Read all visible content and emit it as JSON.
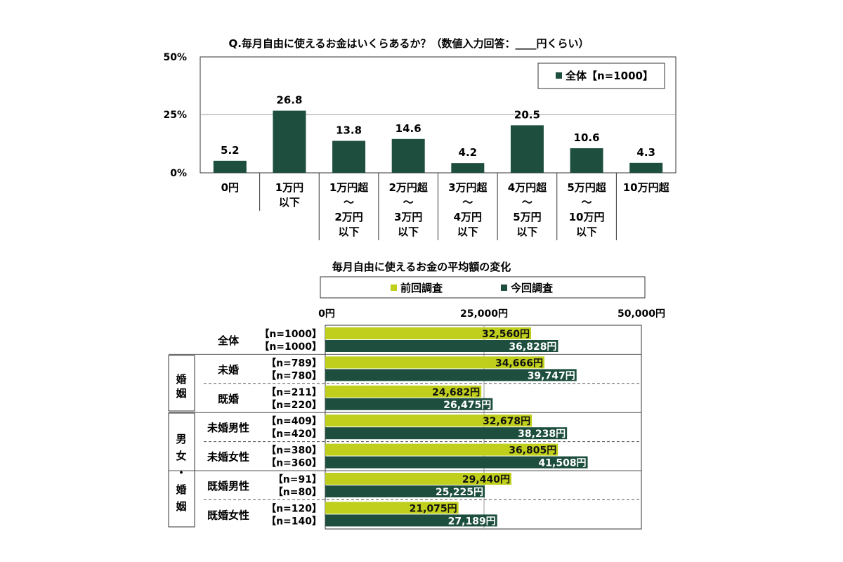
{
  "colors": {
    "dark_green": "#1e4f3e",
    "lime": "#bfcf1c",
    "grid": "#999999",
    "frame": "#333333",
    "white": "#ffffff"
  },
  "chart_data": [
    {
      "type": "bar",
      "title": "Q.毎月自由に使えるお金はいくらあるか？（数値入力回答：____円くらい）",
      "ylim": [
        0,
        50
      ],
      "y_ticks": [
        "50%",
        "25%",
        "0%"
      ],
      "grid": true,
      "legend_position": "top-right",
      "legend": "全体【n=1000】",
      "categories": [
        [
          "0円"
        ],
        [
          "1万円",
          "以下"
        ],
        [
          "1万円超",
          "～",
          "2万円",
          "以下"
        ],
        [
          "2万円超",
          "～",
          "3万円",
          "以下"
        ],
        [
          "3万円超",
          "～",
          "4万円",
          "以下"
        ],
        [
          "4万円超",
          "～",
          "5万円",
          "以下"
        ],
        [
          "5万円超",
          "～",
          "10万円",
          "以下"
        ],
        [
          "10万円超"
        ]
      ],
      "series": [
        {
          "name": "全体【n=1000】",
          "values": [
            5.2,
            26.8,
            13.8,
            14.6,
            4.2,
            20.5,
            10.6,
            4.3
          ]
        }
      ],
      "value_labels": [
        "5.2",
        "26.8",
        "13.8",
        "14.6",
        "4.2",
        "20.5",
        "10.6",
        "4.3"
      ]
    },
    {
      "type": "bar",
      "orientation": "horizontal",
      "title": "毎月自由に使えるお金の平均額の変化",
      "xlim": [
        0,
        50000
      ],
      "x_ticks": [
        "0円",
        "25,000円",
        "50,000円"
      ],
      "grid": true,
      "legend_position": "top",
      "legend": [
        "前回調査",
        "今回調査"
      ],
      "group_labels": [
        "婚姻",
        "男女・婚姻"
      ],
      "rows": [
        {
          "label": "全体",
          "n_prev": "【n=1000】",
          "n_curr": "【n=1000】",
          "prev": 32560,
          "curr": 36828,
          "prev_label": "32,560円",
          "curr_label": "36,828円"
        },
        {
          "label": "未婚",
          "n_prev": "【n=789】",
          "n_curr": "【n=780】",
          "prev": 34666,
          "curr": 39747,
          "prev_label": "34,666円",
          "curr_label": "39,747円"
        },
        {
          "label": "既婚",
          "n_prev": "【n=211】",
          "n_curr": "【n=220】",
          "prev": 24682,
          "curr": 26475,
          "prev_label": "24,682円",
          "curr_label": "26,475円"
        },
        {
          "label": "未婚男性",
          "n_prev": "【n=409】",
          "n_curr": "【n=420】",
          "prev": 32678,
          "curr": 38238,
          "prev_label": "32,678円",
          "curr_label": "38,238円"
        },
        {
          "label": "未婚女性",
          "n_prev": "【n=380】",
          "n_curr": "【n=360】",
          "prev": 36805,
          "curr": 41508,
          "prev_label": "36,805円",
          "curr_label": "41,508円"
        },
        {
          "label": "既婚男性",
          "n_prev": "【n=91】",
          "n_curr": "【n=80】",
          "prev": 29440,
          "curr": 25225,
          "prev_label": "29,440円",
          "curr_label": "25,225円"
        },
        {
          "label": "既婚女性",
          "n_prev": "【n=120】",
          "n_curr": "【n=140】",
          "prev": 21075,
          "curr": 27189,
          "prev_label": "21,075円",
          "curr_label": "27,189円"
        }
      ]
    }
  ]
}
